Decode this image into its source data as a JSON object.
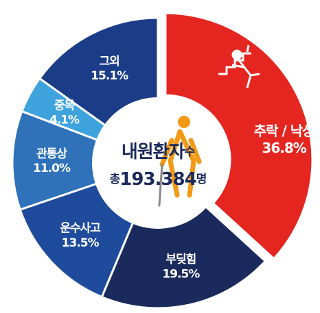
{
  "chart_data": {
    "type": "pie",
    "categories": [
      "추락 / 낙상",
      "부딪힘",
      "운수사고",
      "관통상",
      "중독",
      "그외"
    ],
    "values": [
      36.8,
      19.5,
      13.5,
      11.0,
      4.1,
      15.1
    ],
    "value_labels": [
      "36.8%",
      "19.5%",
      "13.5%",
      "11.0%",
      "4.1%",
      "15.1%"
    ],
    "colors": [
      "#e52520",
      "#1b2a5c",
      "#1f4b9c",
      "#2f72ba",
      "#3ea3dd",
      "#1b3d88"
    ],
    "center_title": [
      "내원환자",
      "수"
    ],
    "center_total": [
      "총",
      "193.384",
      "명"
    ]
  }
}
